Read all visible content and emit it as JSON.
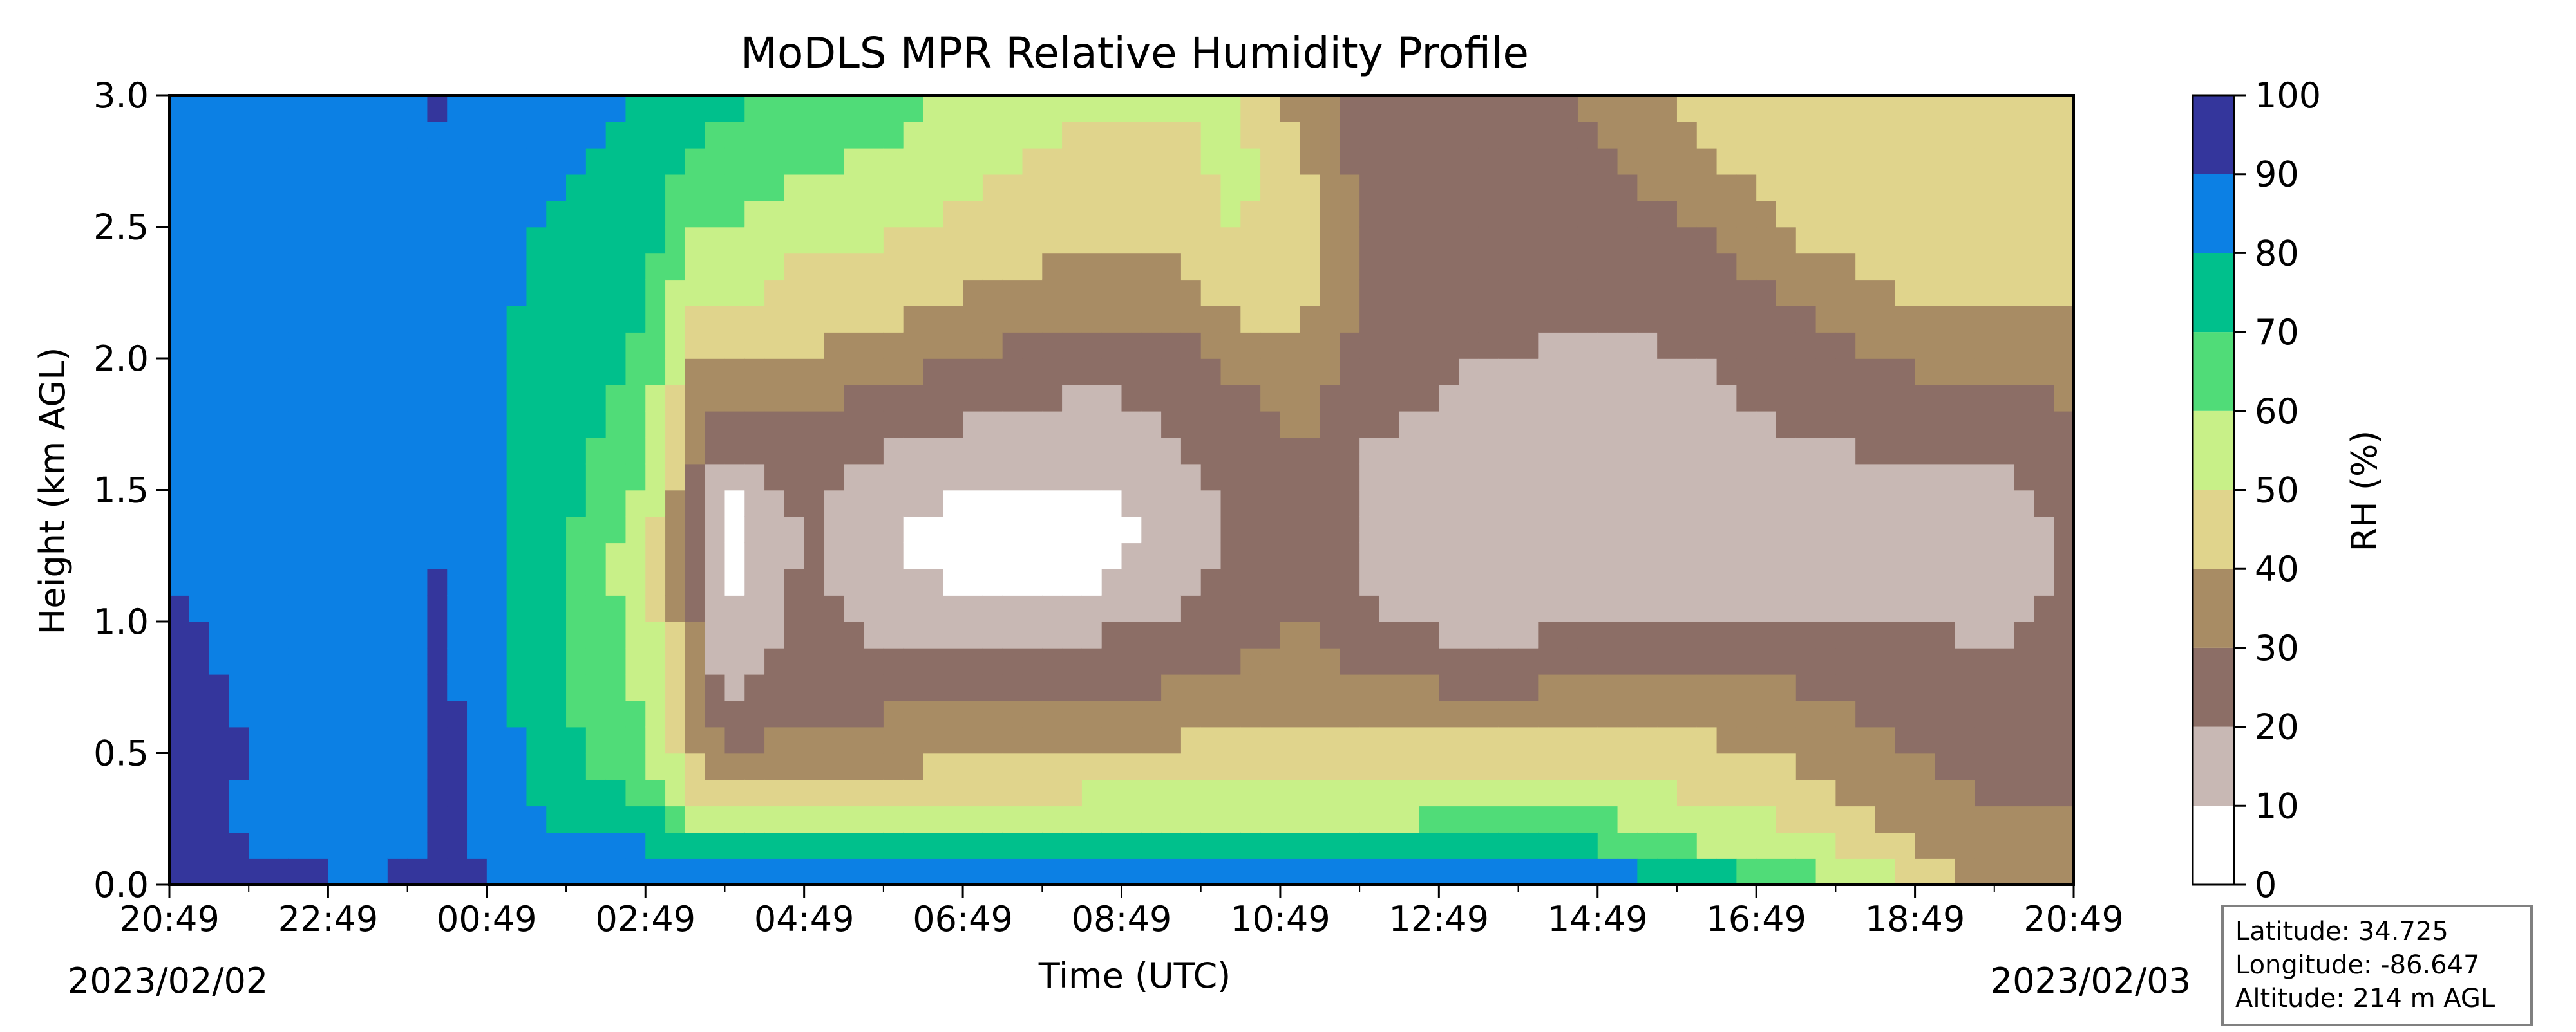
{
  "chart_data": {
    "type": "heatmap",
    "subtype": "filled-contour",
    "title": "MoDLS MPR Relative Humidity Profile",
    "xlabel": "Time (UTC)",
    "ylabel": "Height (km AGL)",
    "x_ticks": [
      "20:49",
      "22:49",
      "00:49",
      "02:49",
      "04:49",
      "06:49",
      "08:49",
      "10:49",
      "12:49",
      "14:49",
      "16:49",
      "18:49",
      "20:49"
    ],
    "x_hours": [
      0,
      2,
      4,
      6,
      8,
      10,
      12,
      14,
      16,
      18,
      20,
      22,
      24
    ],
    "x_range_hours": [
      0,
      24
    ],
    "date_start": "2023/02/02",
    "date_end": "2023/02/03",
    "y_ticks": [
      "0.0",
      "0.5",
      "1.0",
      "1.5",
      "2.0",
      "2.5",
      "3.0"
    ],
    "ylim": [
      0,
      3.0
    ],
    "colorbar": {
      "label": "RH (%)",
      "ticks": [
        "0",
        "10",
        "20",
        "30",
        "40",
        "50",
        "60",
        "70",
        "80",
        "90",
        "100"
      ],
      "levels": [
        0,
        10,
        20,
        30,
        40,
        50,
        60,
        70,
        80,
        90,
        100
      ],
      "colors": [
        "#ffffff",
        "#c8b8b4",
        "#8c6e66",
        "#a88c64",
        "#e0d48c",
        "#c8f088",
        "#50dc78",
        "#00c08c",
        "#0c80e4",
        "#34369c"
      ]
    },
    "info_box": {
      "latitude": "Latitude: 34.725",
      "longitude": "Longitude: -86.647",
      "altitude": "Altitude: 214 m AGL"
    },
    "rh_profiles": [
      {
        "hour": 0.0,
        "rh": [
          96,
          95,
          95,
          94,
          93,
          93,
          92,
          92,
          92,
          91,
          91,
          90,
          90,
          90,
          90,
          90,
          90,
          90,
          90,
          90,
          90,
          90,
          90,
          90,
          90,
          90,
          90,
          90,
          90,
          90,
          90
        ]
      },
      {
        "hour": 2.5,
        "rh": [
          92,
          86,
          80,
          82,
          84,
          86,
          85,
          84,
          84,
          85,
          86,
          84,
          84,
          85,
          85,
          85,
          86,
          86,
          86,
          86,
          87,
          87,
          87,
          87,
          86,
          86,
          86,
          86,
          86,
          86,
          86
        ]
      },
      {
        "hour": 3.5,
        "rh": [
          95,
          94,
          94,
          93,
          93,
          92,
          92,
          92,
          91,
          91,
          91,
          91,
          91,
          90,
          90,
          90,
          90,
          90,
          90,
          90,
          90,
          90,
          90,
          90,
          90,
          90,
          90,
          90,
          90,
          90,
          92
        ]
      },
      {
        "hour": 4.1,
        "rh": [
          91,
          88,
          86,
          85,
          84,
          84,
          83,
          83,
          83,
          82,
          82,
          82,
          82,
          82,
          82,
          82,
          82,
          82,
          81,
          81,
          81,
          81,
          81,
          81,
          81,
          81,
          82,
          82,
          82,
          82,
          82
        ]
      },
      {
        "hour": 5.0,
        "rh": [
          92,
          86,
          80,
          76,
          74,
          73,
          72,
          70,
          70,
          70,
          69,
          69,
          68,
          70,
          72,
          73,
          73,
          74,
          75,
          76,
          76,
          77,
          78,
          78,
          78,
          79,
          80,
          81,
          82,
          84,
          85
        ]
      },
      {
        "hour": 6.0,
        "rh": [
          92,
          84,
          78,
          70,
          66,
          62,
          60,
          58,
          56,
          56,
          55,
          55,
          54,
          55,
          56,
          58,
          60,
          62,
          64,
          66,
          68,
          70,
          71,
          72,
          73,
          74,
          75,
          76,
          77,
          78,
          80
        ]
      },
      {
        "hour": 6.7,
        "rh": [
          92,
          84,
          60,
          50,
          42,
          38,
          34,
          32,
          30,
          28,
          26,
          24,
          22,
          20,
          22,
          24,
          26,
          28,
          30,
          34,
          38,
          42,
          46,
          50,
          54,
          58,
          62,
          66,
          70,
          72,
          74
        ]
      },
      {
        "hour": 7.0,
        "rh": [
          92,
          85,
          62,
          52,
          40,
          30,
          22,
          18,
          14,
          12,
          10,
          8,
          6,
          4,
          6,
          10,
          16,
          22,
          28,
          34,
          40,
          46,
          52,
          56,
          60,
          62,
          64,
          66,
          68,
          70,
          72
        ]
      },
      {
        "hour": 8.0,
        "rh": [
          92,
          85,
          62,
          50,
          42,
          36,
          30,
          28,
          26,
          24,
          24,
          24,
          22,
          22,
          22,
          24,
          26,
          28,
          30,
          34,
          38,
          44,
          46,
          44,
          48,
          52,
          56,
          60,
          62,
          64,
          66
        ]
      },
      {
        "hour": 9.0,
        "rh": [
          92,
          84,
          62,
          50,
          42,
          36,
          32,
          28,
          24,
          20,
          16,
          14,
          12,
          10,
          12,
          14,
          18,
          22,
          26,
          30,
          36,
          40,
          44,
          46,
          48,
          52,
          56,
          58,
          60,
          62,
          64
        ]
      },
      {
        "hour": 10.0,
        "rh": [
          92,
          84,
          62,
          52,
          44,
          38,
          32,
          28,
          24,
          18,
          14,
          10,
          8,
          8,
          8,
          10,
          14,
          18,
          22,
          26,
          30,
          34,
          38,
          42,
          46,
          48,
          50,
          52,
          54,
          56,
          58
        ]
      },
      {
        "hour": 11.5,
        "rh": [
          92,
          82,
          64,
          54,
          46,
          40,
          34,
          30,
          26,
          22,
          16,
          10,
          6,
          6,
          6,
          10,
          14,
          16,
          18,
          20,
          24,
          28,
          32,
          36,
          40,
          42,
          44,
          46,
          48,
          50,
          52
        ]
      },
      {
        "hour": 12.5,
        "rh": [
          92,
          80,
          62,
          54,
          48,
          42,
          36,
          32,
          28,
          24,
          20,
          16,
          14,
          12,
          12,
          14,
          16,
          18,
          20,
          22,
          24,
          28,
          32,
          36,
          40,
          44,
          46,
          46,
          48,
          50,
          52
        ]
      },
      {
        "hour": 13.5,
        "rh": [
          92,
          80,
          60,
          54,
          48,
          44,
          40,
          36,
          32,
          28,
          26,
          24,
          24,
          24,
          24,
          24,
          24,
          26,
          28,
          30,
          34,
          38,
          42,
          46,
          48,
          50,
          52,
          52,
          52,
          50,
          50
        ]
      },
      {
        "hour": 14.3,
        "rh": [
          92,
          80,
          62,
          56,
          50,
          46,
          42,
          38,
          34,
          32,
          30,
          30,
          30,
          30,
          30,
          30,
          30,
          32,
          34,
          36,
          38,
          40,
          42,
          44,
          44,
          44,
          44,
          42,
          40,
          38,
          36
        ]
      },
      {
        "hour": 15.0,
        "rh": [
          92,
          80,
          62,
          56,
          50,
          44,
          38,
          34,
          30,
          26,
          22,
          20,
          18,
          18,
          18,
          18,
          18,
          20,
          22,
          24,
          26,
          28,
          30,
          30,
          30,
          30,
          30,
          28,
          26,
          24,
          22
        ]
      },
      {
        "hour": 16.5,
        "rh": [
          92,
          78,
          64,
          58,
          50,
          44,
          38,
          32,
          26,
          20,
          16,
          14,
          12,
          12,
          14,
          14,
          16,
          18,
          18,
          18,
          20,
          22,
          22,
          24,
          24,
          24,
          24,
          22,
          22,
          22,
          22
        ]
      },
      {
        "hour": 18.0,
        "rh": [
          92,
          76,
          64,
          58,
          52,
          46,
          40,
          34,
          28,
          24,
          20,
          16,
          14,
          12,
          12,
          14,
          14,
          16,
          18,
          18,
          18,
          20,
          22,
          22,
          24,
          24,
          26,
          26,
          28,
          30,
          32
        ]
      },
      {
        "hour": 19.5,
        "rh": [
          80,
          62,
          56,
          50,
          46,
          42,
          38,
          34,
          30,
          26,
          22,
          18,
          16,
          14,
          14,
          14,
          16,
          18,
          18,
          20,
          20,
          22,
          24,
          26,
          28,
          30,
          34,
          38,
          42,
          44,
          46
        ]
      },
      {
        "hour": 20.5,
        "rh": [
          70,
          58,
          52,
          46,
          42,
          38,
          36,
          32,
          28,
          24,
          20,
          18,
          16,
          14,
          14,
          16,
          18,
          20,
          22,
          24,
          26,
          28,
          30,
          34,
          38,
          42,
          44,
          46,
          46,
          46,
          46
        ]
      },
      {
        "hour": 22.0,
        "rh": [
          52,
          42,
          38,
          34,
          32,
          30,
          28,
          26,
          24,
          22,
          20,
          18,
          18,
          18,
          18,
          18,
          20,
          22,
          24,
          28,
          32,
          36,
          40,
          44,
          46,
          46,
          46,
          44,
          42,
          42,
          40
        ]
      },
      {
        "hour": 23.0,
        "rh": [
          34,
          32,
          30,
          30,
          28,
          28,
          26,
          24,
          22,
          20,
          18,
          16,
          14,
          14,
          14,
          16,
          18,
          22,
          26,
          30,
          34,
          38,
          42,
          44,
          46,
          46,
          46,
          46,
          46,
          46,
          46
        ]
      },
      {
        "hour": 24.0,
        "rh": [
          34,
          32,
          30,
          30,
          28,
          28,
          26,
          24,
          24,
          24,
          22,
          22,
          22,
          22,
          24,
          24,
          26,
          28,
          30,
          32,
          34,
          38,
          40,
          42,
          44,
          46,
          46,
          46,
          46,
          46,
          46
        ]
      }
    ]
  }
}
